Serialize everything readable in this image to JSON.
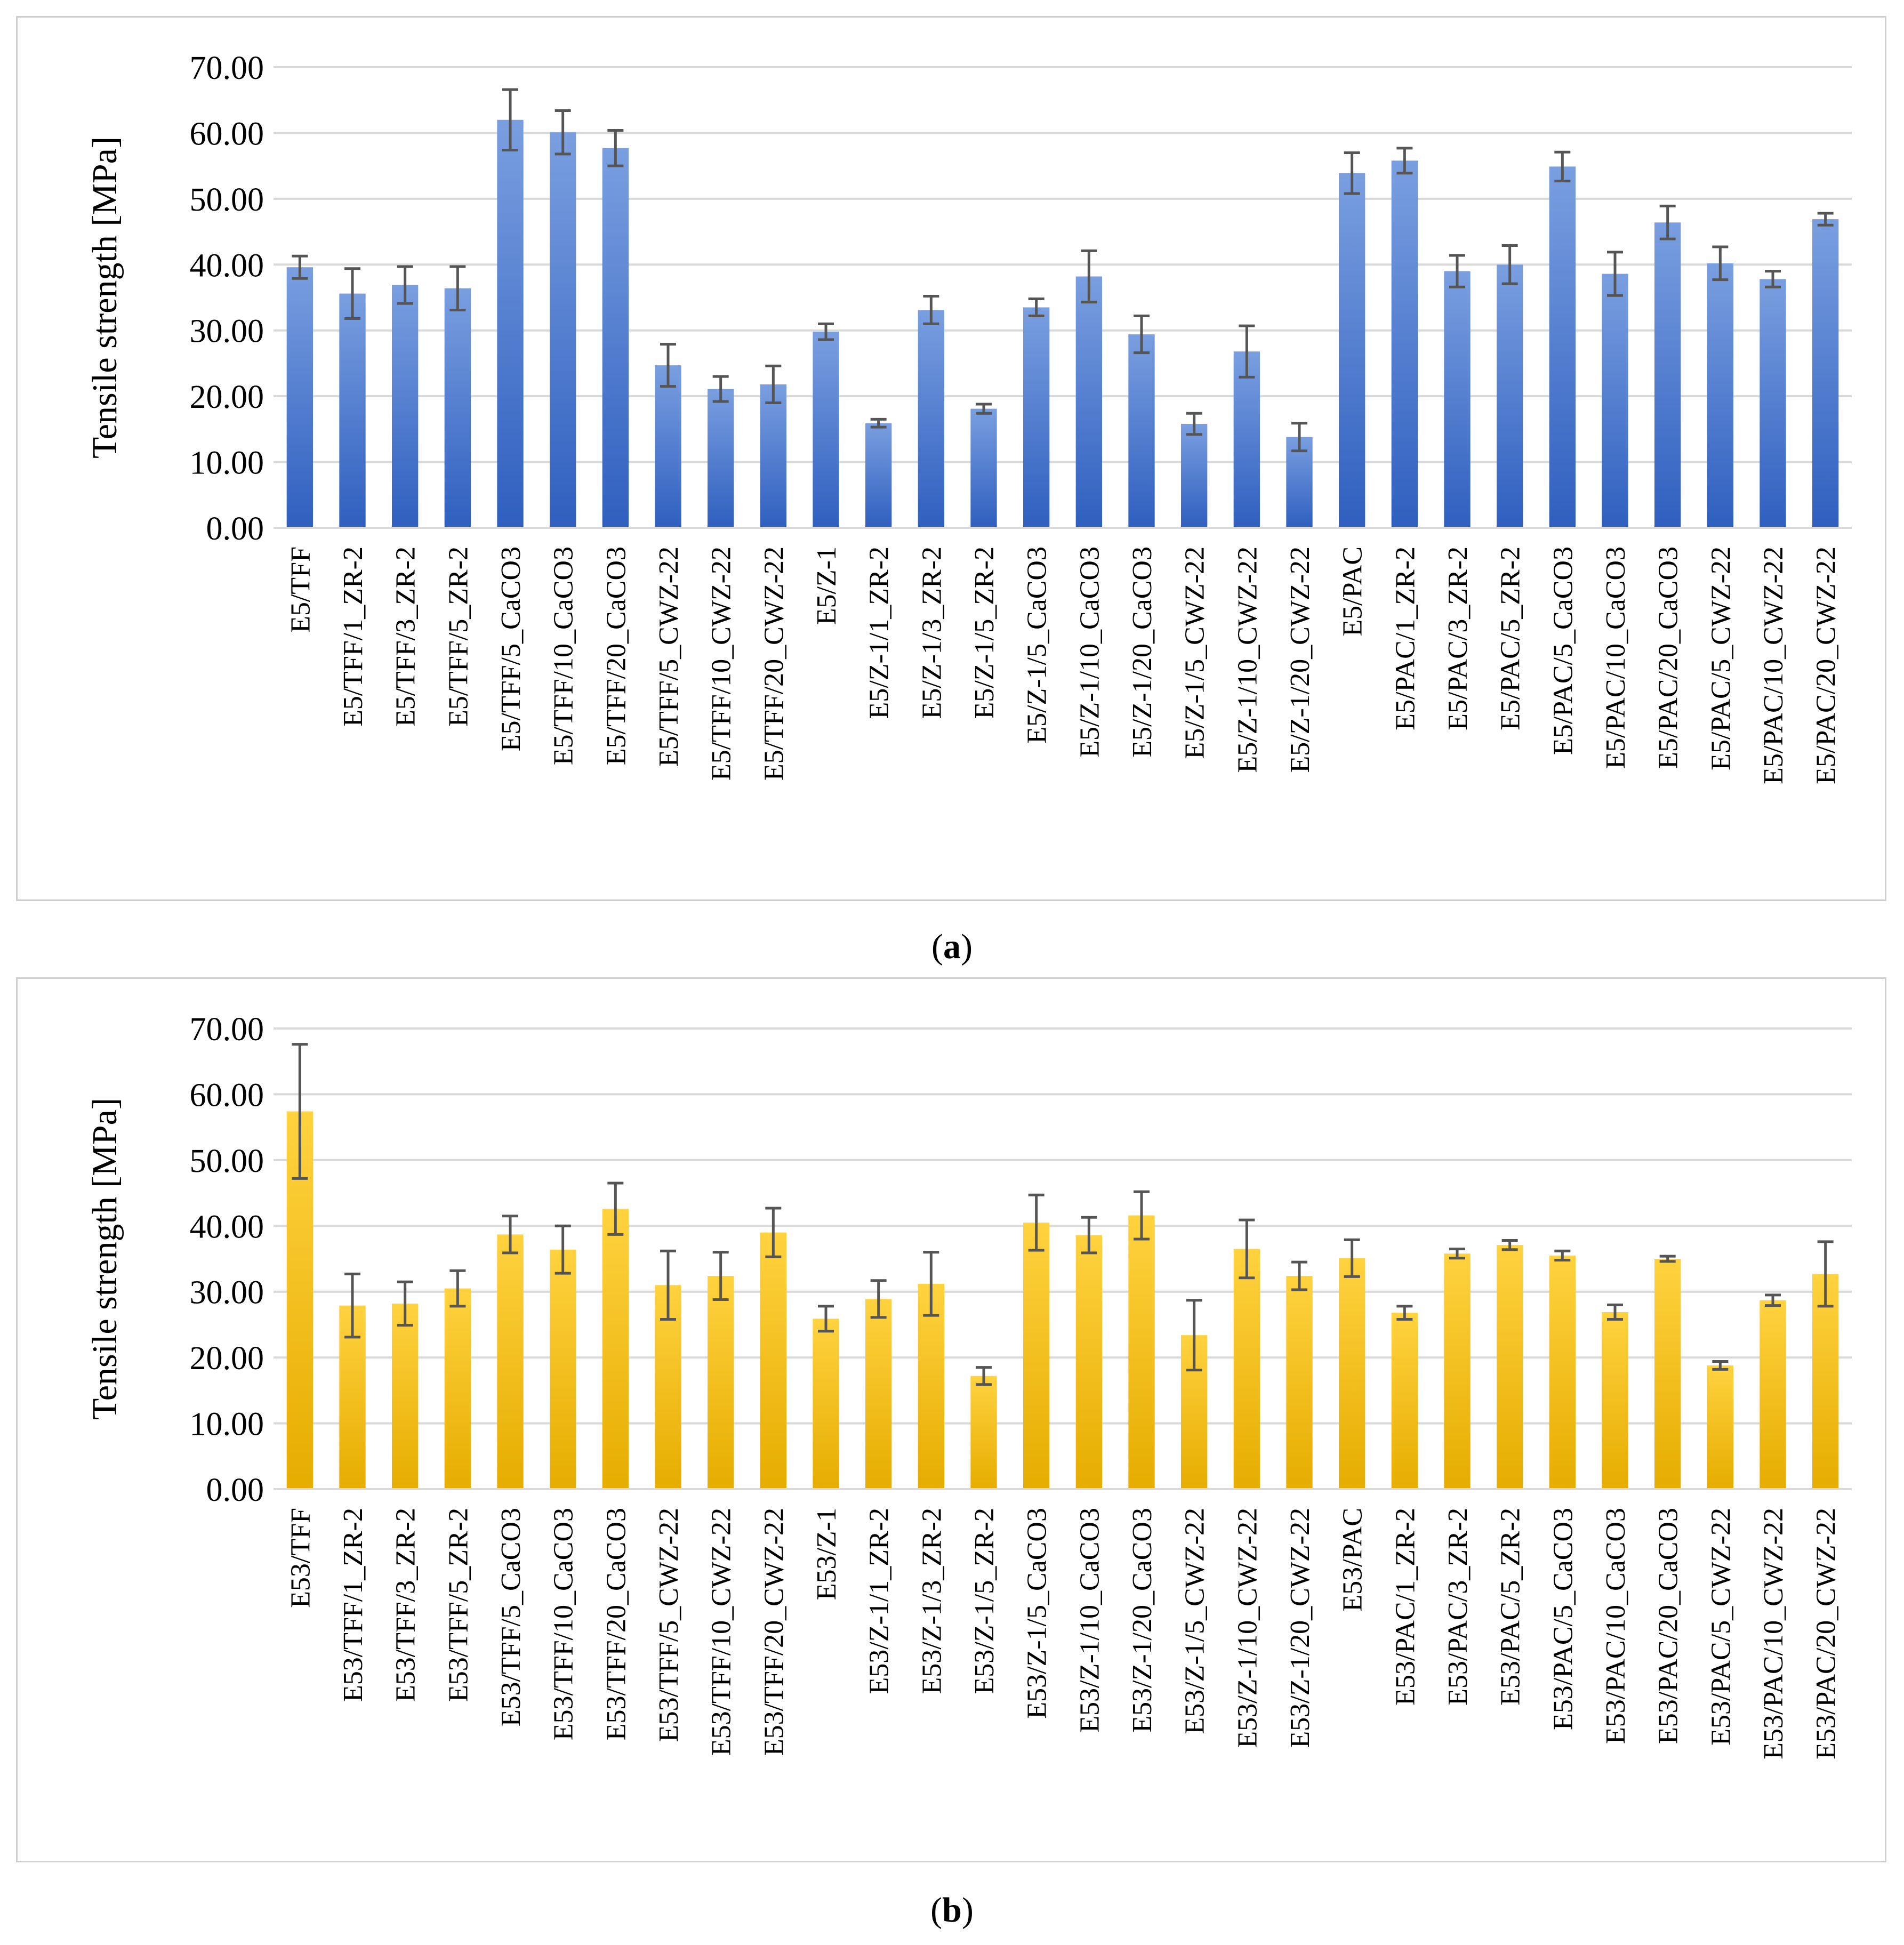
{
  "chart_data": [
    {
      "type": "bar",
      "panel": "a",
      "ylabel": "Tensile strength [MPa]",
      "ylim": [
        0,
        70
      ],
      "ytick_step": 10,
      "ytick_labels": [
        "0.00",
        "10.00",
        "20.00",
        "30.00",
        "40.00",
        "50.00",
        "60.00",
        "70.00"
      ],
      "grid": true,
      "color": "#4472C4",
      "color_light": "#7a9fe0",
      "color_dark": "#2f5fbf",
      "categories": [
        "E5/TFF",
        "E5/TFF/1_ZR-2",
        "E5/TFF/3_ZR-2",
        "E5/TFF/5_ZR-2",
        "E5/TFF/5_CaCO3",
        "E5/TFF/10_CaCO3",
        "E5/TFF/20_CaCO3",
        "E5/TFF/5_CWZ-22",
        "E5/TFF/10_CWZ-22",
        "E5/TFF/20_CWZ-22",
        "E5/Z-1",
        "E5/Z-1/1_ZR-2",
        "E5/Z-1/3_ZR-2",
        "E5/Z-1/5_ZR-2",
        "E5/Z-1/5_CaCO3",
        "E5/Z-1/10_CaCO3",
        "E5/Z-1/20_CaCO3",
        "E5/Z-1/5_CWZ-22",
        "E5/Z-1/10_CWZ-22",
        "E5/Z-1/20_CWZ-22",
        "E5/PAC",
        "E5/PAC/1_ZR-2",
        "E5/PAC/3_ZR-2",
        "E5/PAC/5_ZR-2",
        "E5/PAC/5_CaCO3",
        "E5/PAC/10_CaCO3",
        "E5/PAC/20_CaCO3",
        "E5/PAC/5_CWZ-22",
        "E5/PAC/10_CWZ-22",
        "E5/PAC/20_CWZ-22"
      ],
      "values": [
        39.6,
        35.6,
        36.9,
        36.4,
        62.0,
        60.1,
        57.7,
        24.7,
        21.1,
        21.8,
        29.8,
        15.9,
        33.1,
        18.1,
        33.5,
        38.2,
        29.4,
        15.8,
        26.8,
        13.8,
        53.9,
        55.8,
        39.0,
        40.0,
        54.9,
        38.6,
        46.4,
        40.2,
        37.8,
        46.9
      ],
      "errors": [
        1.7,
        3.8,
        2.8,
        3.3,
        4.6,
        3.3,
        2.7,
        3.2,
        1.9,
        2.8,
        1.2,
        0.6,
        2.1,
        0.7,
        1.3,
        3.9,
        2.8,
        1.6,
        3.9,
        2.1,
        3.1,
        1.9,
        2.4,
        2.9,
        2.2,
        3.3,
        2.5,
        2.5,
        1.2,
        0.9
      ]
    },
    {
      "type": "bar",
      "panel": "b",
      "ylabel": "Tensile strength [MPa]",
      "ylim": [
        0,
        70
      ],
      "ytick_step": 10,
      "ytick_labels": [
        "0.00",
        "10.00",
        "20.00",
        "30.00",
        "40.00",
        "50.00",
        "60.00",
        "70.00"
      ],
      "grid": true,
      "color": "#FFC000",
      "color_light": "#ffd23f",
      "color_dark": "#e6ad00",
      "categories": [
        "E53/TFF",
        "E53/TFF/1_ZR-2",
        "E53/TFF/3_ZR-2",
        "E53/TFF/5_ZR-2",
        "E53/TFF/5_CaCO3",
        "E53/TFF/10_CaCO3",
        "E53/TFF/20_CaCO3",
        "E53/TFF/5_CWZ-22",
        "E53/TFF/10_CWZ-22",
        "E53/TFF/20_CWZ-22",
        "E53/Z-1",
        "E53/Z-1/1_ZR-2",
        "E53/Z-1/3_ZR-2",
        "E53/Z-1/5_ZR-2",
        "E53/Z-1/5_CaCO3",
        "E53/Z-1/10_CaCO3",
        "E53/Z-1/20_CaCO3",
        "E53/Z-1/5_CWZ-22",
        "E53/Z-1/10_CWZ-22",
        "E53/Z-1/20_CWZ-22",
        "E53/PAC",
        "E53/PAC/1_ZR-2",
        "E53/PAC/3_ZR-2",
        "E53/PAC/5_ZR-2",
        "E53/PAC/5_CaCO3",
        "E53/PAC/10_CaCO3",
        "E53/PAC/20_CaCO3",
        "E53/PAC/5_CWZ-22",
        "E53/PAC/10_CWZ-22",
        "E53/PAC/20_CWZ-22"
      ],
      "values": [
        57.4,
        27.9,
        28.2,
        30.5,
        38.7,
        36.4,
        42.6,
        31.0,
        32.4,
        39.0,
        25.9,
        28.9,
        31.2,
        17.2,
        40.5,
        38.6,
        41.6,
        23.4,
        36.5,
        32.4,
        35.1,
        26.8,
        35.8,
        37.1,
        35.5,
        26.9,
        35.0,
        18.8,
        28.7,
        32.7
      ],
      "errors": [
        10.2,
        4.8,
        3.3,
        2.7,
        2.8,
        3.6,
        3.9,
        5.2,
        3.6,
        3.7,
        1.9,
        2.8,
        4.8,
        1.3,
        4.2,
        2.7,
        3.6,
        5.3,
        4.4,
        2.1,
        2.8,
        1.0,
        0.7,
        0.7,
        0.7,
        1.1,
        0.4,
        0.6,
        0.8,
        4.9
      ]
    }
  ],
  "captions": {
    "a": {
      "open": "(",
      "letter": "a",
      "close": ")"
    },
    "b": {
      "open": "(",
      "letter": "b",
      "close": ")"
    }
  }
}
